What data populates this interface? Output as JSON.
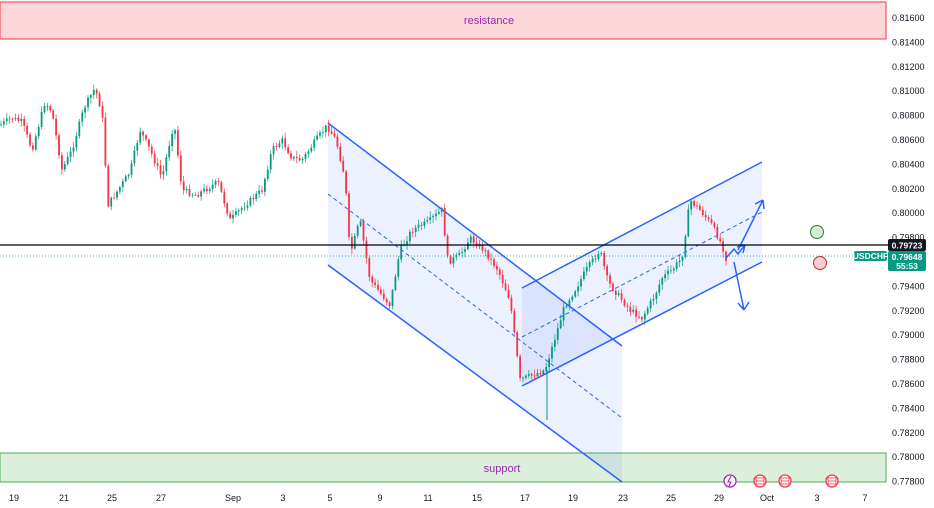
{
  "chart_data": {
    "type": "candlestick",
    "symbol": "USDCHF",
    "y_axis_ticks": [
      "0.81600",
      "0.81400",
      "0.81200",
      "0.81000",
      "0.80800",
      "0.80600",
      "0.80400",
      "0.80200",
      "0.80000",
      "0.79800",
      "0.79600",
      "0.79400",
      "0.79200",
      "0.79000",
      "0.78800",
      "0.78600",
      "0.78400",
      "0.78200",
      "0.78000",
      "0.77800"
    ],
    "x_axis_ticks": [
      "19",
      "21",
      "25",
      "27",
      "Sep",
      "3",
      "5",
      "9",
      "11",
      "15",
      "17",
      "19",
      "23",
      "25",
      "29",
      "Oct",
      "3",
      "7"
    ],
    "horizontal_line_price": "0.79723",
    "current_price": "0.79648",
    "countdown": "55:53",
    "zones": [
      {
        "name": "resistance",
        "from": 0.8142,
        "to": 0.8173,
        "color": "#f23645"
      },
      {
        "name": "support",
        "from": 0.7778,
        "to": 0.7802,
        "color": "#4caf50"
      }
    ],
    "ylim": [
      0.7773,
      0.8175
    ],
    "colors": {
      "up": "#089981",
      "down": "#f23645",
      "channel": "#2962ff"
    }
  }
}
